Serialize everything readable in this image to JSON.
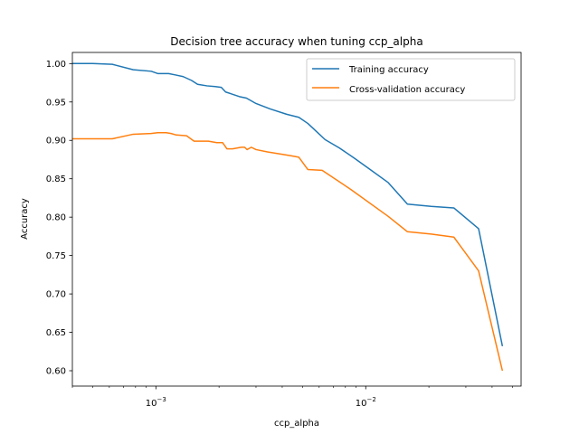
{
  "chart_data": {
    "type": "line",
    "title": "Decision tree accuracy when tuning ccp_alpha",
    "xlabel": "ccp_alpha",
    "ylabel": "Accuracy",
    "xscale": "log",
    "xlim": [
      0.0004,
      0.055
    ],
    "ylim": [
      0.58,
      1.0145
    ],
    "x_ticks": [
      {
        "value": 0.001,
        "base": "10",
        "exp": "−3"
      },
      {
        "value": 0.01,
        "base": "10",
        "exp": "−2"
      }
    ],
    "y_ticks": [
      "0.60",
      "0.65",
      "0.70",
      "0.75",
      "0.80",
      "0.85",
      "0.90",
      "0.95",
      "1.00"
    ],
    "legend_position": "upper right",
    "grid": false,
    "series": [
      {
        "name": "Training accuracy",
        "color": "#1f77b4",
        "points": [
          [
            0.0004,
            1.0
          ],
          [
            0.0005,
            1.0
          ],
          [
            0.00062,
            0.999
          ],
          [
            0.00078,
            0.992
          ],
          [
            0.00095,
            0.99
          ],
          [
            0.00102,
            0.987
          ],
          [
            0.00115,
            0.987
          ],
          [
            0.00125,
            0.985
          ],
          [
            0.00135,
            0.983
          ],
          [
            0.00148,
            0.978
          ],
          [
            0.00158,
            0.973
          ],
          [
            0.00175,
            0.971
          ],
          [
            0.00192,
            0.97
          ],
          [
            0.00205,
            0.969
          ],
          [
            0.00215,
            0.963
          ],
          [
            0.00232,
            0.96
          ],
          [
            0.0025,
            0.957
          ],
          [
            0.0027,
            0.955
          ],
          [
            0.003,
            0.948
          ],
          [
            0.0035,
            0.941
          ],
          [
            0.0042,
            0.934
          ],
          [
            0.0048,
            0.93
          ],
          [
            0.0053,
            0.922
          ],
          [
            0.0058,
            0.912
          ],
          [
            0.0064,
            0.901
          ],
          [
            0.0075,
            0.89
          ],
          [
            0.0088,
            0.877
          ],
          [
            0.0105,
            0.862
          ],
          [
            0.0128,
            0.845
          ],
          [
            0.0158,
            0.817
          ],
          [
            0.0205,
            0.814
          ],
          [
            0.0263,
            0.812
          ],
          [
            0.0345,
            0.785
          ],
          [
            0.0448,
            0.632
          ]
        ]
      },
      {
        "name": "Cross-validation accuracy",
        "color": "#ff7f0e",
        "points": [
          [
            0.0004,
            0.902
          ],
          [
            0.0005,
            0.902
          ],
          [
            0.00062,
            0.902
          ],
          [
            0.00078,
            0.908
          ],
          [
            0.00095,
            0.909
          ],
          [
            0.00102,
            0.91
          ],
          [
            0.00112,
            0.91
          ],
          [
            0.00118,
            0.909
          ],
          [
            0.00125,
            0.907
          ],
          [
            0.0014,
            0.906
          ],
          [
            0.00152,
            0.899
          ],
          [
            0.00178,
            0.899
          ],
          [
            0.00195,
            0.897
          ],
          [
            0.00208,
            0.897
          ],
          [
            0.00218,
            0.889
          ],
          [
            0.00232,
            0.889
          ],
          [
            0.00255,
            0.891
          ],
          [
            0.00265,
            0.891
          ],
          [
            0.00272,
            0.888
          ],
          [
            0.00285,
            0.891
          ],
          [
            0.003,
            0.888
          ],
          [
            0.0034,
            0.885
          ],
          [
            0.0044,
            0.88
          ],
          [
            0.0048,
            0.878
          ],
          [
            0.0053,
            0.862
          ],
          [
            0.0062,
            0.861
          ],
          [
            0.0085,
            0.836
          ],
          [
            0.0128,
            0.801
          ],
          [
            0.0158,
            0.781
          ],
          [
            0.0205,
            0.778
          ],
          [
            0.0263,
            0.774
          ],
          [
            0.0345,
            0.73
          ],
          [
            0.0448,
            0.6
          ]
        ]
      }
    ]
  }
}
